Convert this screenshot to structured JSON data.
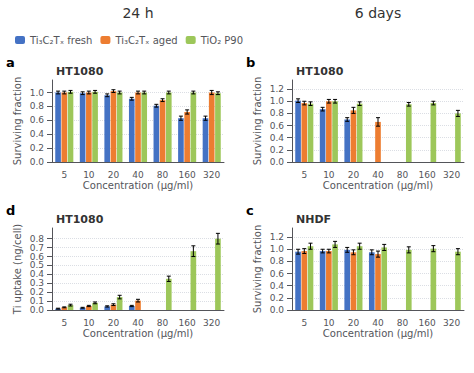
{
  "chart_data": [
    {
      "type": "bar",
      "title": "HT1080",
      "annotations": [
        {
          "text": "a"
        }
      ],
      "xlabel": "Concentration (μg/ml)",
      "ylabel": "Surviving fraction",
      "categories": [
        5,
        10,
        20,
        40,
        80,
        160,
        320
      ],
      "series": [
        {
          "name": "Ti₃C₂Tₓ fresh",
          "color": "#4472C4",
          "values": [
            1.0,
            0.99,
            0.96,
            0.91,
            0.81,
            0.63,
            0.63
          ],
          "errors": [
            0.02,
            0.02,
            0.02,
            0.02,
            0.02,
            0.03,
            0.03
          ]
        },
        {
          "name": "Ti₃C₂Tₓ aged",
          "color": "#ED7D31",
          "values": [
            1.0,
            1.0,
            1.02,
            1.0,
            0.89,
            0.72,
            1.0
          ],
          "errors": [
            0.02,
            0.02,
            0.02,
            0.02,
            0.02,
            0.03,
            0.03
          ]
        },
        {
          "name": "TiO₂ P90",
          "color": "#9DC75A",
          "values": [
            1.01,
            1.01,
            1.0,
            1.0,
            1.0,
            1.0,
            0.99
          ],
          "errors": [
            0.02,
            0.02,
            0.02,
            0.02,
            0.02,
            0.02,
            0.02
          ]
        }
      ],
      "ylim": [
        0,
        1.18
      ],
      "yticks": [
        {
          "value": 0,
          "label": "0.0"
        },
        0.2,
        0.4,
        0.6,
        0.8,
        {
          "value": 1,
          "label": "1.0"
        }
      ],
      "grid": true
    },
    {
      "type": "bar",
      "title": "HT1080",
      "annotations": [
        {
          "text": "b"
        }
      ],
      "xlabel": "Concentration (μg/ml)",
      "ylabel": "Surviving fraction",
      "categories": [
        5,
        10,
        20,
        40,
        80,
        160,
        320
      ],
      "series": [
        {
          "name": "Ti₃C₂Tₓ fresh",
          "color": "#4472C4",
          "values": [
            1.01,
            0.87,
            0.7,
            null,
            null,
            null,
            null
          ],
          "errors": [
            0.03,
            0.03,
            0.03,
            null,
            null,
            null,
            null
          ]
        },
        {
          "name": "Ti₃C₂Tₓ aged",
          "color": "#ED7D31",
          "values": [
            0.97,
            1.0,
            0.85,
            0.66,
            null,
            null,
            null
          ],
          "errors": [
            0.03,
            0.03,
            0.05,
            0.07,
            null,
            null,
            null
          ]
        },
        {
          "name": "TiO₂ P90",
          "color": "#9DC75A",
          "values": [
            0.96,
            1.0,
            0.96,
            null,
            0.95,
            0.97,
            0.8
          ],
          "errors": [
            0.03,
            0.03,
            0.03,
            null,
            0.03,
            0.03,
            0.05
          ]
        }
      ],
      "ylim": [
        0,
        1.35
      ],
      "yticks": [
        {
          "value": 0,
          "label": "0.0"
        },
        0.2,
        0.4,
        0.6,
        0.8,
        {
          "value": 1,
          "label": "1.0"
        },
        1.2
      ],
      "grid": true
    },
    {
      "type": "bar",
      "title": "HT1080",
      "annotations": [
        {
          "text": "d"
        }
      ],
      "xlabel": "Concentration (μg/ml)",
      "ylabel": "Ti uptake (ng/cell)",
      "categories": [
        5,
        10,
        20,
        40,
        80,
        160,
        320
      ],
      "series": [
        {
          "name": "Ti₃C₂Tₓ fresh",
          "color": "#4472C4",
          "values": [
            0.015,
            0.025,
            0.04,
            0.045,
            null,
            null,
            null
          ],
          "errors": [
            0.005,
            0.005,
            0.007,
            0.007,
            null,
            null,
            null
          ]
        },
        {
          "name": "Ti₃C₂Tₓ aged",
          "color": "#ED7D31",
          "values": [
            0.03,
            0.045,
            0.06,
            0.105,
            null,
            null,
            null
          ],
          "errors": [
            0.005,
            0.007,
            0.01,
            0.015,
            null,
            null,
            null
          ]
        },
        {
          "name": "TiO₂ P90",
          "color": "#9DC75A",
          "values": [
            0.055,
            0.08,
            0.145,
            null,
            0.35,
            0.66,
            0.8
          ],
          "errors": [
            0.01,
            0.01,
            0.02,
            null,
            0.03,
            0.06,
            0.06
          ]
        }
      ],
      "ylim": [
        0,
        0.92
      ],
      "yticks": [
        {
          "value": 0,
          "label": "0.0"
        },
        0.1,
        0.2,
        0.3,
        0.4,
        0.5,
        0.6,
        0.7,
        0.8
      ],
      "grid": true
    },
    {
      "type": "bar",
      "title": "NHDF",
      "annotations": [
        {
          "text": "c"
        }
      ],
      "xlabel": "Concentration (μg/ml)",
      "ylabel": "Surviving fraction",
      "categories": [
        5,
        10,
        20,
        40,
        80,
        160,
        320
      ],
      "series": [
        {
          "name": "Ti₃C₂Tₓ fresh",
          "color": "#4472C4",
          "values": [
            0.96,
            0.97,
            0.99,
            0.95,
            null,
            null,
            null
          ],
          "errors": [
            0.04,
            0.03,
            0.04,
            0.04,
            null,
            null,
            null
          ]
        },
        {
          "name": "Ti₃C₂Tₓ aged",
          "color": "#ED7D31",
          "values": [
            0.97,
            0.97,
            0.95,
            0.92,
            null,
            null,
            null
          ],
          "errors": [
            0.04,
            0.03,
            0.04,
            0.05,
            null,
            null,
            null
          ]
        },
        {
          "name": "TiO₂ P90",
          "color": "#9DC75A",
          "values": [
            1.05,
            1.08,
            1.05,
            1.03,
            0.99,
            1.01,
            0.96
          ],
          "errors": [
            0.05,
            0.05,
            0.05,
            0.05,
            0.05,
            0.05,
            0.05
          ]
        }
      ],
      "ylim": [
        0,
        1.35
      ],
      "yticks": [
        {
          "value": 0,
          "label": "0.0"
        },
        0.2,
        0.4,
        0.6,
        0.8,
        {
          "value": 1,
          "label": "1.0"
        },
        1.2
      ],
      "grid": true
    }
  ],
  "annotations": [
    {
      "text": "24 h"
    },
    {
      "text": "6 days"
    }
  ],
  "legend": "upper left"
}
